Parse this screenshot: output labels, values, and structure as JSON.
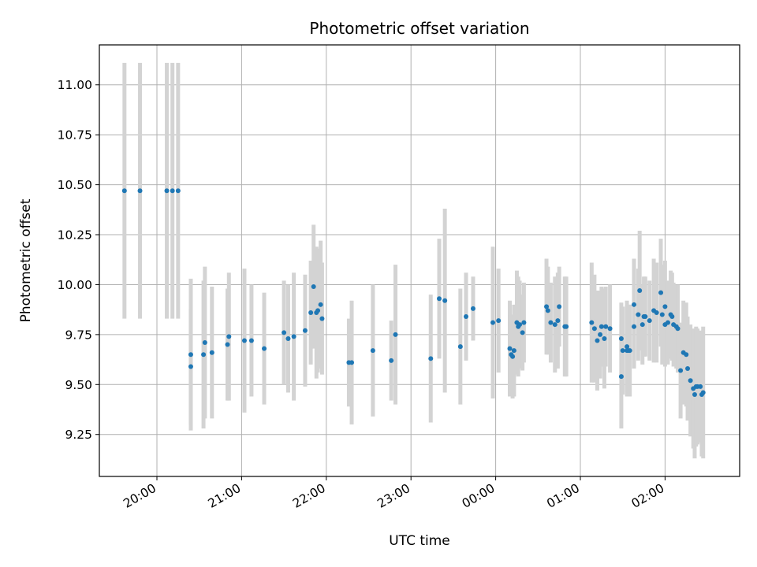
{
  "chart_data": {
    "type": "scatter",
    "title": "Photometric offset variation",
    "xlabel": "UTC time",
    "ylabel": "Photometric offset",
    "x_axis": "time",
    "x_ticks": [
      "20:00",
      "21:00",
      "22:00",
      "23:00",
      "00:00",
      "01:00",
      "02:00"
    ],
    "y_ticks": [
      "9.25",
      "9.50",
      "9.75",
      "10.00",
      "10.25",
      "10.50",
      "10.75",
      "11.00"
    ],
    "ylim": [
      9.04,
      11.2
    ],
    "grid": true,
    "colors": {
      "point": "#1f77b4",
      "errorbar": "#d3d3d3",
      "grid": "#b0b0b0"
    },
    "series": [
      {
        "x": [
          "19:37",
          "19:48",
          "20:07",
          "20:11",
          "20:15",
          "20:24",
          "20:24",
          "20:33",
          "20:34",
          "20:39",
          "20:50",
          "20:51",
          "21:02",
          "21:07",
          "21:16",
          "21:30",
          "21:33",
          "21:37",
          "21:45",
          "21:49",
          "21:51",
          "21:53",
          "21:54",
          "21:56",
          "21:57",
          "22:16",
          "22:18",
          "22:33",
          "22:46",
          "22:49",
          "23:14",
          "23:20",
          "23:24",
          "23:35",
          "23:39",
          "23:44",
          "23:58",
          "24:02",
          "24:10",
          "24:11",
          "24:12",
          "24:13",
          "24:15",
          "24:16",
          "24:17",
          "24:19",
          "24:20",
          "24:36",
          "24:37",
          "24:39",
          "24:42",
          "24:44",
          "24:45",
          "24:49",
          "24:50",
          "25:08",
          "25:10",
          "25:12",
          "25:14",
          "25:15",
          "25:17",
          "25:18",
          "25:21",
          "25:29",
          "25:29",
          "25:30",
          "25:33",
          "25:33",
          "25:34",
          "25:35",
          "25:38",
          "25:38",
          "25:41",
          "25:42",
          "25:44",
          "25:45",
          "25:46",
          "25:49",
          "25:52",
          "25:54",
          "25:57",
          "25:58",
          "26:00",
          "26:00",
          "26:02",
          "26:04",
          "26:05",
          "26:06",
          "26:08",
          "26:09",
          "26:11",
          "26:13",
          "26:15",
          "26:16",
          "26:18",
          "26:20",
          "26:21",
          "26:22",
          "26:23",
          "26:25",
          "26:26",
          "26:27"
        ],
        "y": [
          10.47,
          10.47,
          10.47,
          10.47,
          10.47,
          9.59,
          9.65,
          9.65,
          9.71,
          9.66,
          9.7,
          9.74,
          9.72,
          9.72,
          9.68,
          9.76,
          9.73,
          9.74,
          9.77,
          9.86,
          9.99,
          9.86,
          9.87,
          9.9,
          9.83,
          9.61,
          9.61,
          9.67,
          9.62,
          9.75,
          9.63,
          9.93,
          9.92,
          9.69,
          9.84,
          9.88,
          9.81,
          9.82,
          9.68,
          9.65,
          9.64,
          9.67,
          9.81,
          9.79,
          9.8,
          9.76,
          9.81,
          9.89,
          9.87,
          9.81,
          9.8,
          9.82,
          9.89,
          9.79,
          9.79,
          9.81,
          9.78,
          9.72,
          9.75,
          9.79,
          9.73,
          9.79,
          9.78,
          9.73,
          9.54,
          9.67,
          9.69,
          9.67,
          9.67,
          9.67,
          9.79,
          9.9,
          9.85,
          9.97,
          9.8,
          9.84,
          9.84,
          9.82,
          9.87,
          9.86,
          9.96,
          9.85,
          9.89,
          9.8,
          9.81,
          9.85,
          9.84,
          9.8,
          9.79,
          9.78,
          9.57,
          9.66,
          9.65,
          9.58,
          9.52,
          9.48,
          9.45,
          9.49,
          9.49,
          9.49,
          9.45,
          9.46
        ],
        "err": [
          0.64,
          0.64,
          0.64,
          0.64,
          0.64,
          0.29,
          0.38,
          0.37,
          0.38,
          0.33,
          0.28,
          0.32,
          0.36,
          0.28,
          0.28,
          0.26,
          0.27,
          0.32,
          0.28,
          0.26,
          0.31,
          0.33,
          0.31,
          0.32,
          0.28,
          0.22,
          0.31,
          0.33,
          0.2,
          0.35,
          0.32,
          0.3,
          0.46,
          0.29,
          0.22,
          0.16,
          0.38,
          0.26,
          0.24,
          0.2,
          0.21,
          0.23,
          0.26,
          0.25,
          0.22,
          0.19,
          0.2,
          0.24,
          0.22,
          0.2,
          0.24,
          0.24,
          0.2,
          0.25,
          0.25,
          0.3,
          0.27,
          0.25,
          0.22,
          0.2,
          0.25,
          0.2,
          0.22,
          0.18,
          0.26,
          0.22,
          0.23,
          0.23,
          0.23,
          0.23,
          0.21,
          0.23,
          0.23,
          0.3,
          0.2,
          0.2,
          0.2,
          0.2,
          0.26,
          0.25,
          0.27,
          0.25,
          0.23,
          0.21,
          0.21,
          0.22,
          0.22,
          0.21,
          0.21,
          0.22,
          0.24,
          0.26,
          0.26,
          0.26,
          0.28,
          0.3,
          0.32,
          0.3,
          0.29,
          0.28,
          0.31,
          0.33
        ]
      }
    ]
  }
}
